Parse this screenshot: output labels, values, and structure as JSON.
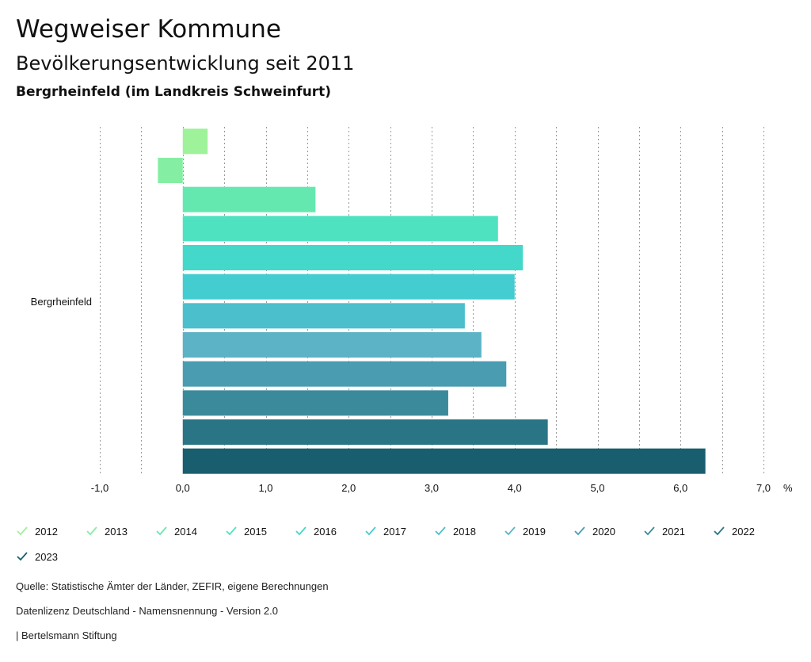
{
  "header": {
    "title": "Wegweiser Kommune",
    "subtitle": "Bevölkerungsentwicklung seit 2011",
    "region": "Bergrheinfeld (im Landkreis Schweinfurt)"
  },
  "chart_data": {
    "type": "bar",
    "orientation": "horizontal",
    "category": "Bergrheinfeld",
    "unit": "%",
    "xlim": [
      -1.0,
      7.0
    ],
    "tick_values": [
      -1,
      0,
      1,
      2,
      3,
      4,
      5,
      6,
      7
    ],
    "tick_labels": [
      "-1,0",
      "0,0",
      "1,0",
      "2,0",
      "3,0",
      "4,0",
      "5,0",
      "6,0",
      "7,0"
    ],
    "grid": true,
    "series": [
      {
        "name": "2012",
        "value": 0.3,
        "color": "#9ef29a"
      },
      {
        "name": "2013",
        "value": -0.3,
        "color": "#84eea2"
      },
      {
        "name": "2014",
        "value": 1.6,
        "color": "#64e8b0"
      },
      {
        "name": "2015",
        "value": 3.8,
        "color": "#4fe2c0"
      },
      {
        "name": "2016",
        "value": 4.1,
        "color": "#43d8c9"
      },
      {
        "name": "2017",
        "value": 4.0,
        "color": "#43cdd0"
      },
      {
        "name": "2018",
        "value": 3.4,
        "color": "#4bbfcc"
      },
      {
        "name": "2019",
        "value": 3.6,
        "color": "#5bb3c5"
      },
      {
        "name": "2020",
        "value": 3.9,
        "color": "#4a9cb1"
      },
      {
        "name": "2021",
        "value": 3.2,
        "color": "#3b8a9c"
      },
      {
        "name": "2022",
        "value": 4.4,
        "color": "#2a7585"
      },
      {
        "name": "2023",
        "value": 6.3,
        "color": "#195e6e"
      }
    ]
  },
  "footer": {
    "source": "Quelle: Statistische Ämter der Länder, ZEFIR, eigene Berechnungen",
    "license": "Datenlizenz Deutschland - Namensnennung - Version 2.0",
    "publisher": "| Bertelsmann Stiftung"
  }
}
